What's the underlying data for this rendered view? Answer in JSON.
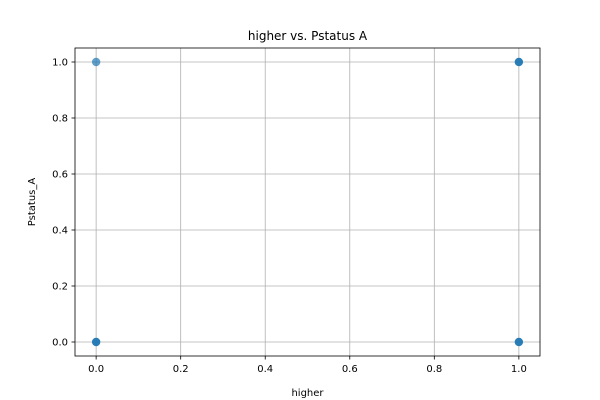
{
  "chart_data": {
    "type": "scatter",
    "title": "higher vs. Pstatus A",
    "xlabel": "higher",
    "ylabel": "Pstatus_A",
    "xlim": [
      -0.05,
      1.05
    ],
    "ylim": [
      -0.05,
      1.05
    ],
    "xticks": [
      0.0,
      0.2,
      0.4,
      0.6,
      0.8,
      1.0
    ],
    "yticks": [
      0.0,
      0.2,
      0.4,
      0.6,
      0.8,
      1.0
    ],
    "xtick_labels": [
      "0.0",
      "0.2",
      "0.4",
      "0.6",
      "0.8",
      "1.0"
    ],
    "ytick_labels": [
      "0.0",
      "0.2",
      "0.4",
      "0.6",
      "0.8",
      "1.0"
    ],
    "grid": true,
    "legend": "none",
    "color": "#1f77b4",
    "points": [
      {
        "x": 0,
        "y": 1,
        "density": "low"
      },
      {
        "x": 0,
        "y": 0,
        "density": "high"
      },
      {
        "x": 1,
        "y": 1,
        "density": "high"
      },
      {
        "x": 1,
        "y": 0,
        "density": "high"
      }
    ]
  }
}
